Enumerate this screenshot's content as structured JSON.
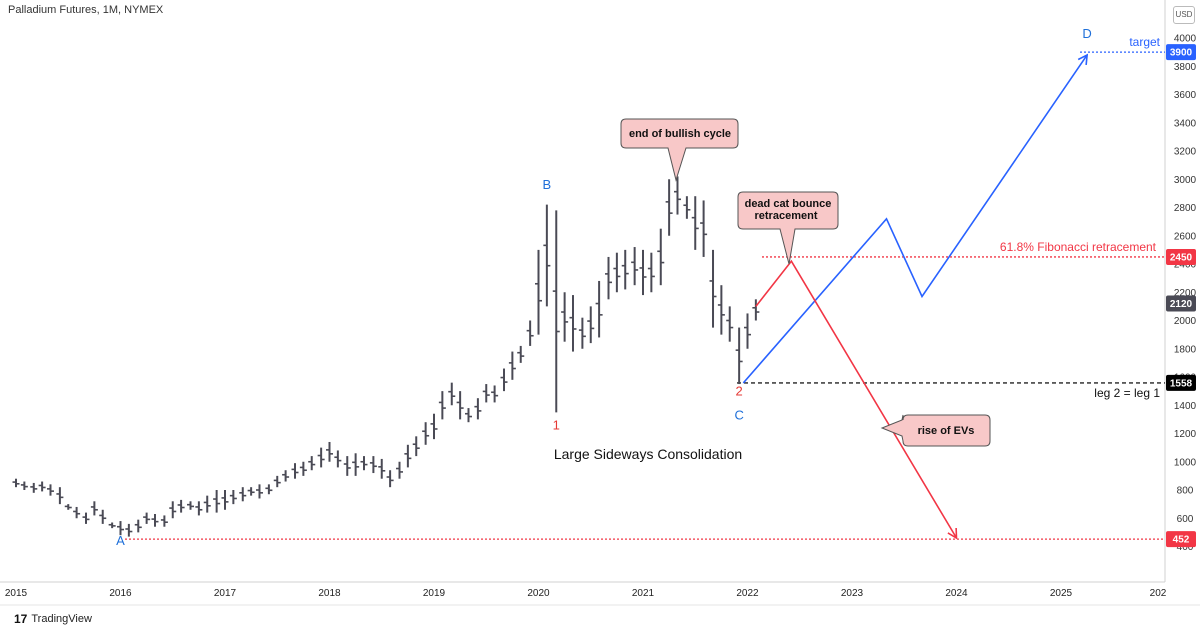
{
  "header": {
    "title": "Palladium Futures, 1M, NYMEX",
    "currency": "USD"
  },
  "brand": {
    "logo": "17",
    "name": "TradingView"
  },
  "colors": {
    "bar": "#4a4a55",
    "blue": "#2962ff",
    "red": "#f23645",
    "price_tag": "#4a4a55",
    "support_tag": "#000000",
    "callout_fill": "#f8c8c8",
    "callout_stroke": "#555555",
    "wave_label_blue": "#1e6fd9",
    "wave_label_red": "#e53935"
  },
  "chart_data": {
    "type": "ohlc-bar",
    "title": "Palladium Futures, 1M, NYMEX",
    "x_ticks": [
      "2015",
      "2016",
      "2017",
      "2018",
      "2019",
      "2020",
      "2021",
      "2022",
      "2023",
      "2024",
      "2025",
      "202"
    ],
    "y_ticks": [
      400,
      600,
      800,
      1000,
      1200,
      1400,
      1600,
      1800,
      2000,
      2200,
      2400,
      2600,
      2800,
      3000,
      3200,
      3400,
      3600,
      3800,
      4000
    ],
    "ylim": [
      300,
      4100
    ],
    "bars": [
      [
        2015.0,
        820,
        880
      ],
      [
        2015.08,
        800,
        860
      ],
      [
        2015.17,
        780,
        850
      ],
      [
        2015.25,
        790,
        860
      ],
      [
        2015.33,
        760,
        840
      ],
      [
        2015.42,
        700,
        820
      ],
      [
        2015.5,
        660,
        700
      ],
      [
        2015.58,
        600,
        680
      ],
      [
        2015.67,
        560,
        640
      ],
      [
        2015.75,
        620,
        720
      ],
      [
        2015.83,
        560,
        660
      ],
      [
        2015.92,
        530,
        570
      ],
      [
        2016.0,
        480,
        580
      ],
      [
        2016.08,
        470,
        560
      ],
      [
        2016.17,
        500,
        590
      ],
      [
        2016.25,
        560,
        640
      ],
      [
        2016.33,
        540,
        630
      ],
      [
        2016.42,
        540,
        620
      ],
      [
        2016.5,
        600,
        720
      ],
      [
        2016.58,
        640,
        730
      ],
      [
        2016.67,
        660,
        720
      ],
      [
        2016.75,
        620,
        720
      ],
      [
        2016.83,
        640,
        760
      ],
      [
        2016.92,
        640,
        800
      ],
      [
        2017.0,
        660,
        800
      ],
      [
        2017.08,
        700,
        800
      ],
      [
        2017.17,
        720,
        820
      ],
      [
        2017.25,
        760,
        820
      ],
      [
        2017.33,
        740,
        840
      ],
      [
        2017.42,
        770,
        840
      ],
      [
        2017.5,
        820,
        900
      ],
      [
        2017.58,
        860,
        940
      ],
      [
        2017.67,
        880,
        990
      ],
      [
        2017.75,
        900,
        1000
      ],
      [
        2017.83,
        940,
        1040
      ],
      [
        2017.92,
        960,
        1100
      ],
      [
        2018.0,
        1000,
        1140
      ],
      [
        2018.08,
        960,
        1080
      ],
      [
        2018.17,
        900,
        1040
      ],
      [
        2018.25,
        900,
        1060
      ],
      [
        2018.33,
        940,
        1040
      ],
      [
        2018.42,
        920,
        1040
      ],
      [
        2018.5,
        880,
        1020
      ],
      [
        2018.58,
        820,
        940
      ],
      [
        2018.67,
        880,
        1000
      ],
      [
        2018.75,
        960,
        1120
      ],
      [
        2018.83,
        1040,
        1180
      ],
      [
        2018.92,
        1120,
        1280
      ],
      [
        2019.0,
        1160,
        1340
      ],
      [
        2019.08,
        1300,
        1500
      ],
      [
        2019.17,
        1400,
        1560
      ],
      [
        2019.25,
        1300,
        1500
      ],
      [
        2019.33,
        1280,
        1380
      ],
      [
        2019.42,
        1300,
        1450
      ],
      [
        2019.5,
        1420,
        1550
      ],
      [
        2019.58,
        1420,
        1540
      ],
      [
        2019.67,
        1500,
        1660
      ],
      [
        2019.75,
        1580,
        1780
      ],
      [
        2019.83,
        1700,
        1820
      ],
      [
        2019.92,
        1820,
        2000
      ],
      [
        2020.0,
        1900,
        2500
      ],
      [
        2020.08,
        2100,
        2820
      ],
      [
        2020.17,
        1350,
        2780
      ],
      [
        2020.25,
        1850,
        2200
      ],
      [
        2020.33,
        1780,
        2180
      ],
      [
        2020.42,
        1800,
        2020
      ],
      [
        2020.5,
        1840,
        2100
      ],
      [
        2020.58,
        1880,
        2280
      ],
      [
        2020.67,
        2150,
        2450
      ],
      [
        2020.75,
        2200,
        2480
      ],
      [
        2020.83,
        2220,
        2500
      ],
      [
        2020.92,
        2250,
        2520
      ],
      [
        2021.0,
        2180,
        2500
      ],
      [
        2021.08,
        2200,
        2480
      ],
      [
        2021.17,
        2250,
        2650
      ],
      [
        2021.25,
        2600,
        3000
      ],
      [
        2021.33,
        2750,
        3020
      ],
      [
        2021.42,
        2720,
        2880
      ],
      [
        2021.5,
        2500,
        2880
      ],
      [
        2021.58,
        2450,
        2850
      ],
      [
        2021.67,
        1950,
        2500
      ],
      [
        2021.75,
        1900,
        2250
      ],
      [
        2021.83,
        1850,
        2100
      ],
      [
        2021.92,
        1550,
        1950
      ],
      [
        2022.0,
        1800,
        2050
      ],
      [
        2022.08,
        2000,
        2150
      ]
    ],
    "last_price": 2120,
    "horizontal_levels": [
      {
        "value": 3900,
        "label": "target",
        "tag": "3900",
        "color": "blue"
      },
      {
        "value": 2450,
        "label": "61.8% Fibonacci retracement",
        "tag": "2450",
        "color": "red"
      },
      {
        "value": 1558,
        "label": "leg 2 = leg 1",
        "tag": "1558",
        "color": "black"
      },
      {
        "value": 452,
        "label": "",
        "tag": "452",
        "color": "red"
      }
    ],
    "price_tag": "2120",
    "projections": {
      "blue": [
        [
          2021.96,
          1558
        ],
        [
          2023.33,
          2720
        ],
        [
          2023.67,
          2170
        ],
        [
          2025.25,
          3880
        ]
      ],
      "red": [
        [
          2022.08,
          2100
        ],
        [
          2022.42,
          2420
        ],
        [
          2024.0,
          460
        ]
      ]
    },
    "wave_labels": [
      {
        "text": "A",
        "x": 2016.0,
        "y": 410,
        "color": "blue"
      },
      {
        "text": "B",
        "x": 2020.08,
        "y": 2930,
        "color": "blue"
      },
      {
        "text": "1",
        "x": 2020.17,
        "y": 1230,
        "color": "red"
      },
      {
        "text": "2",
        "x": 2021.92,
        "y": 1470,
        "color": "red"
      },
      {
        "text": "C",
        "x": 2021.92,
        "y": 1300,
        "color": "blue"
      },
      {
        "text": "D",
        "x": 2025.25,
        "y": 4000,
        "color": "blue"
      }
    ],
    "annotations": [
      {
        "text": "Large Sideways Consolidation"
      }
    ],
    "callouts": [
      {
        "lines": [
          "end of bullish cycle"
        ]
      },
      {
        "lines": [
          "dead cat bounce",
          "retracement"
        ]
      },
      {
        "lines": [
          "rise of EVs"
        ]
      }
    ]
  }
}
